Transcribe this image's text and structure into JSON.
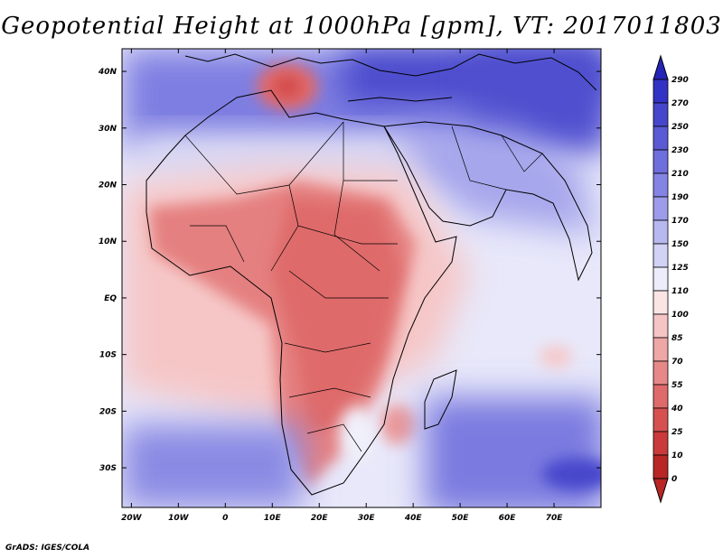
{
  "title": "Geopotential Height at 1000hPa [gpm], VT: 2017011803",
  "credit": "GrADS: IGES/COLA",
  "map": {
    "variable": "Geopotential Height",
    "level": "1000hPa",
    "units": "gpm",
    "valid_time": "2017011803",
    "lat_labels": [
      "40N",
      "30N",
      "20N",
      "10N",
      "EQ",
      "10S",
      "20S",
      "30S"
    ],
    "lat_values": [
      40,
      30,
      20,
      10,
      0,
      -10,
      -20,
      -30
    ],
    "lon_labels": [
      "20W",
      "10W",
      "0",
      "10E",
      "20E",
      "30E",
      "40E",
      "50E",
      "60E",
      "70E"
    ],
    "lon_values": [
      -20,
      -10,
      0,
      10,
      20,
      30,
      40,
      50,
      60,
      70
    ],
    "extent": {
      "lon_min": -22,
      "lon_max": 80,
      "lat_min": -37,
      "lat_max": 44
    }
  },
  "colorbar": {
    "labels": [
      "290",
      "270",
      "250",
      "230",
      "210",
      "190",
      "170",
      "150",
      "125",
      "110",
      "100",
      "85",
      "70",
      "55",
      "40",
      "25",
      "10",
      "0"
    ],
    "colors": [
      "#2424b8",
      "#3232c4",
      "#4646cc",
      "#5a5ad4",
      "#6e6edc",
      "#8484e4",
      "#9c9cea",
      "#b8b8f0",
      "#d2d2f6",
      "#ececfa",
      "#fbe4e4",
      "#f5c4c4",
      "#eea6a6",
      "#e78888",
      "#df6a6a",
      "#d65050",
      "#ca3a3a",
      "#b82626"
    ]
  }
}
